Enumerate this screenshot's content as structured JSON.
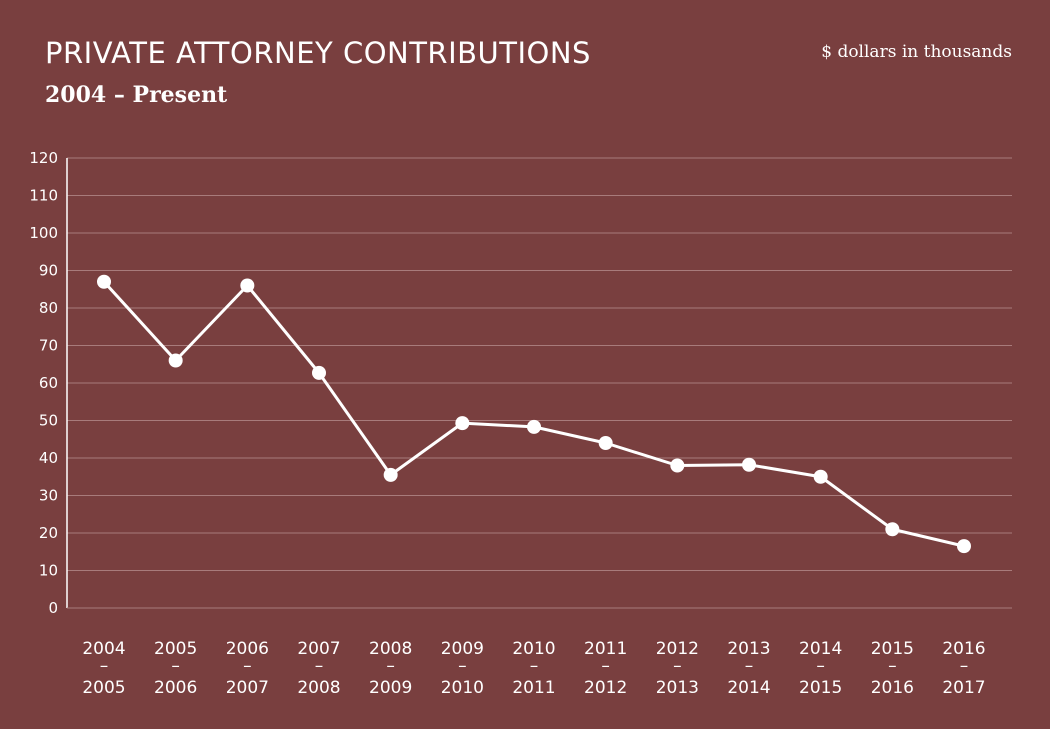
{
  "chart_data": {
    "type": "line",
    "title": "PRIVATE ATTORNEY CONTRIBUTIONS",
    "subtitle": "2004 – Present",
    "units_note": "$ dollars in thousands",
    "categories": [
      [
        "2004",
        "–",
        "2005"
      ],
      [
        "2005",
        "–",
        "2006"
      ],
      [
        "2006",
        "–",
        "2007"
      ],
      [
        "2007",
        "–",
        "2008"
      ],
      [
        "2008",
        "–",
        "2009"
      ],
      [
        "2009",
        "–",
        "2010"
      ],
      [
        "2010",
        "–",
        "2011"
      ],
      [
        "2011",
        "–",
        "2012"
      ],
      [
        "2012",
        "–",
        "2013"
      ],
      [
        "2013",
        "–",
        "2014"
      ],
      [
        "2014",
        "–",
        "2015"
      ],
      [
        "2015",
        "–",
        "2016"
      ],
      [
        "2016",
        "–",
        "2017"
      ]
    ],
    "values": [
      87,
      66,
      86,
      62.7,
      35.5,
      49.3,
      48.3,
      44,
      38,
      38.2,
      35,
      21,
      16.5
    ],
    "ylim": [
      0,
      120
    ],
    "yticks": [
      "0",
      "10",
      "20",
      "30",
      "40",
      "50",
      "60",
      "70",
      "80",
      "90",
      "100",
      "110",
      "120"
    ],
    "grid": true,
    "legend": "none",
    "colors": {
      "background": "#793f3f",
      "line": "#ffffff",
      "grid": "#a87b7b"
    }
  }
}
